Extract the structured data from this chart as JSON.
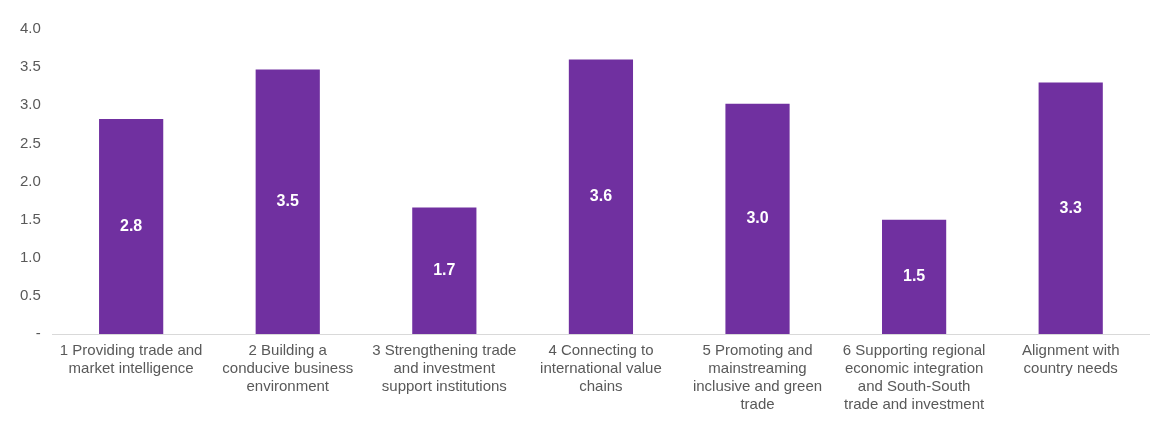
{
  "chart_data": {
    "type": "bar",
    "categories": [
      "1 Providing trade and market intelligence",
      "2 Building a conducive business environment",
      "3 Strengthening trade and investment support institutions",
      "4 Connecting to international value chains",
      "5 Promoting and mainstreaming inclusive and green trade",
      "6 Supporting regional economic integration and South-South trade and investment",
      "Alignment with country needs"
    ],
    "values": [
      2.82,
      3.47,
      1.66,
      3.6,
      3.02,
      1.5,
      3.3
    ],
    "value_labels": [
      "2.8",
      "3.5",
      "1.7",
      "3.6",
      "3.0",
      "1.5",
      "3.3"
    ],
    "color": "#7030a0",
    "ylim": [
      0,
      4
    ],
    "yticks": [
      {
        "value": 0,
        "label": "-"
      },
      {
        "value": 0.5,
        "label": "0.5"
      },
      {
        "value": 1,
        "label": "1.0"
      },
      {
        "value": 1.5,
        "label": "1.5"
      },
      {
        "value": 2,
        "label": "2.0"
      },
      {
        "value": 2.5,
        "label": "2.5"
      },
      {
        "value": 3,
        "label": "3.0"
      },
      {
        "value": 3.5,
        "label": "3.5"
      },
      {
        "value": 4,
        "label": "4.0"
      }
    ],
    "grid": false,
    "legend": false
  }
}
